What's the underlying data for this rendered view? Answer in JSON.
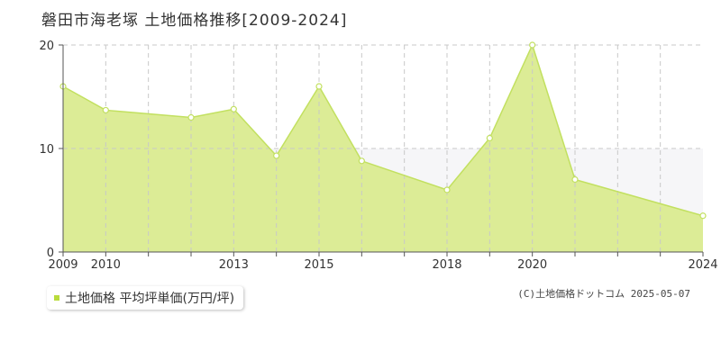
{
  "title": "磐田市海老塚 土地価格推移[2009-2024]",
  "legend": {
    "label": "土地価格 平均坪単価(万円/坪)"
  },
  "copyright": "(C)土地価格ドットコム 2025-05-07",
  "colors": {
    "fill": "#dcec96",
    "line": "#c2e060",
    "marker": "#ffffff",
    "grid": "#c8c8c8",
    "band": "#f6f6f8"
  },
  "chart_data": {
    "type": "area",
    "title": "磐田市海老塚 土地価格推移[2009-2024]",
    "x": [
      2009,
      2010,
      2012,
      2013,
      2014,
      2015,
      2016,
      2018,
      2019,
      2020,
      2021,
      2024
    ],
    "series": [
      {
        "name": "土地価格 平均坪単価(万円/坪)",
        "values": [
          16.0,
          13.7,
          13.0,
          13.8,
          9.3,
          16.0,
          8.8,
          6.0,
          11.0,
          20.0,
          7.0,
          3.5
        ]
      }
    ],
    "xticks": [
      2009,
      2010,
      2013,
      2015,
      2018,
      2020,
      2024
    ],
    "yticks": [
      0,
      10,
      20
    ],
    "xlim": [
      2009,
      2024
    ],
    "ylim": [
      0,
      20
    ],
    "grid": true
  }
}
